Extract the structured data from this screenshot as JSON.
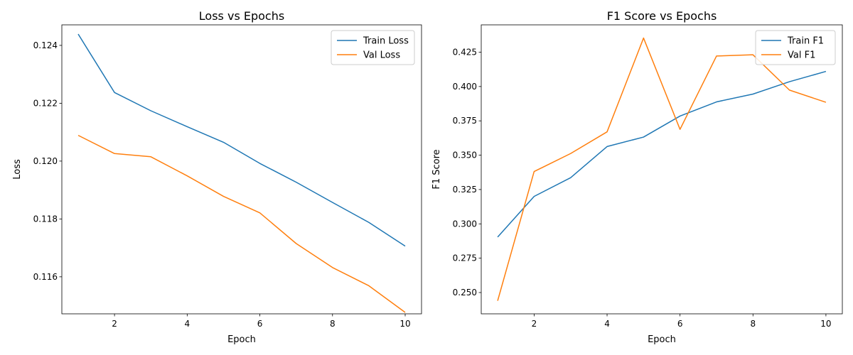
{
  "chart_data": [
    {
      "type": "line",
      "title": "Loss vs Epochs",
      "xlabel": "Epoch",
      "ylabel": "Loss",
      "xlim": [
        0.55,
        10.45
      ],
      "ylim": [
        0.11472,
        0.12471
      ],
      "xticks": [
        2,
        4,
        6,
        8,
        10
      ],
      "yticks": [
        0.116,
        0.118,
        0.12,
        0.122,
        0.124
      ],
      "ytick_labels": [
        "0.116",
        "0.118",
        "0.120",
        "0.122",
        "0.124"
      ],
      "xtick_labels": [
        "2",
        "4",
        "6",
        "8",
        "10"
      ],
      "legend": "top-right",
      "grid": false,
      "x": [
        1,
        2,
        3,
        4,
        5,
        6,
        7,
        8,
        9,
        10
      ],
      "series": [
        {
          "name": "Train Loss",
          "color": "#1f77b4",
          "values": [
            0.12439,
            0.12237,
            0.12174,
            0.12119,
            0.12065,
            0.11992,
            0.11927,
            0.11857,
            0.11788,
            0.11706
          ]
        },
        {
          "name": "Val Loss",
          "color": "#ff7f0e",
          "values": [
            0.12089,
            0.12026,
            0.12015,
            0.11949,
            0.11878,
            0.11821,
            0.11715,
            0.11632,
            0.11569,
            0.11477
          ]
        }
      ]
    },
    {
      "type": "line",
      "title": "F1 Score vs Epochs",
      "xlabel": "Epoch",
      "ylabel": "F1 Score",
      "xlim": [
        0.55,
        10.45
      ],
      "ylim": [
        0.2345,
        0.4449
      ],
      "xticks": [
        2,
        4,
        6,
        8,
        10
      ],
      "yticks": [
        0.25,
        0.275,
        0.3,
        0.325,
        0.35,
        0.375,
        0.4,
        0.425
      ],
      "ytick_labels": [
        "0.250",
        "0.275",
        "0.300",
        "0.325",
        "0.350",
        "0.375",
        "0.400",
        "0.425"
      ],
      "xtick_labels": [
        "2",
        "4",
        "6",
        "8",
        "10"
      ],
      "legend": "top-right",
      "grid": false,
      "x": [
        1,
        2,
        3,
        4,
        5,
        6,
        7,
        8,
        9,
        10
      ],
      "series": [
        {
          "name": "Train F1",
          "color": "#1f77b4",
          "values": [
            0.2904,
            0.32,
            0.3336,
            0.3563,
            0.3632,
            0.3785,
            0.3888,
            0.3945,
            0.4035,
            0.411
          ]
        },
        {
          "name": "Val F1",
          "color": "#ff7f0e",
          "values": [
            0.244,
            0.3381,
            0.3512,
            0.367,
            0.4353,
            0.3688,
            0.4222,
            0.4231,
            0.3974,
            0.3885
          ]
        }
      ]
    }
  ]
}
